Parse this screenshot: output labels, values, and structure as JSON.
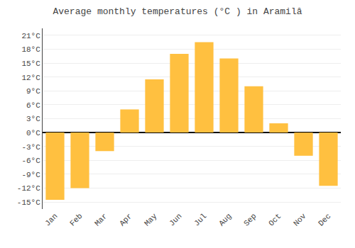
{
  "chart_data": {
    "type": "bar",
    "title": "Average monthly temperatures (°C ) in Aramilâ",
    "categories": [
      "Jan",
      "Feb",
      "Mar",
      "Apr",
      "May",
      "Jun",
      "Jul",
      "Aug",
      "Sep",
      "Oct",
      "Nov",
      "Dec"
    ],
    "values": [
      -14.5,
      -12.0,
      -4.0,
      5.0,
      11.5,
      17.0,
      19.5,
      16.0,
      10.0,
      2.0,
      -5.0,
      -11.5
    ],
    "color": "#FFC040",
    "ylim": [
      -16.5,
      22.5
    ],
    "yticks": [
      {
        "value": -15,
        "label": "-15°C"
      },
      {
        "value": -12,
        "label": "-12°C"
      },
      {
        "value": -9,
        "label": "-9°C"
      },
      {
        "value": -6,
        "label": "-6°C"
      },
      {
        "value": -3,
        "label": "-3°C"
      },
      {
        "value": 0,
        "label": "0°C"
      },
      {
        "value": 3,
        "label": "3°C"
      },
      {
        "value": 6,
        "label": "6°C"
      },
      {
        "value": 9,
        "label": "9°C"
      },
      {
        "value": 12,
        "label": "12°C"
      },
      {
        "value": 15,
        "label": "15°C"
      },
      {
        "value": 18,
        "label": "18°C"
      },
      {
        "value": 21,
        "label": "21°C"
      }
    ],
    "grid": true
  }
}
